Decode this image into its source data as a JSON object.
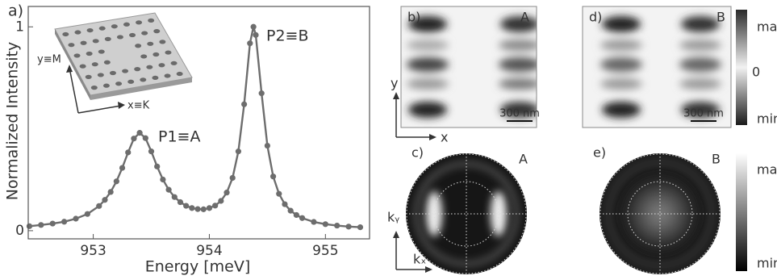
{
  "chart_data": {
    "type": "line",
    "panel_label": "a)",
    "x_label": "Energy [meV]",
    "y_label": "Normalized Intensity",
    "annotations": [
      "P1≡A",
      "P2≡B"
    ],
    "inset_labels": [
      "y≡M",
      "x≡K"
    ],
    "xlim": [
      952.44,
      955.38
    ],
    "ylim": [
      -0.04,
      1.1
    ],
    "xticks": [
      953,
      954,
      955
    ],
    "yticks": [
      0,
      1
    ],
    "x": [
      952.45,
      952.55,
      952.65,
      952.75,
      952.85,
      952.95,
      953.05,
      953.1,
      953.15,
      953.2,
      953.25,
      953.3,
      953.35,
      953.4,
      953.45,
      953.5,
      953.55,
      953.6,
      953.65,
      953.7,
      953.75,
      953.8,
      953.85,
      953.9,
      953.95,
      954.0,
      954.05,
      954.1,
      954.15,
      954.2,
      954.25,
      954.3,
      954.35,
      954.38,
      954.4,
      954.45,
      954.5,
      954.55,
      954.6,
      954.65,
      954.7,
      954.75,
      954.8,
      954.9,
      955.0,
      955.1,
      955.2,
      955.3
    ],
    "series": [
      {
        "color": "#6d6d6d",
        "values": [
          0.022,
          0.028,
          0.035,
          0.044,
          0.059,
          0.082,
          0.121,
          0.151,
          0.19,
          0.242,
          0.308,
          0.384,
          0.452,
          0.48,
          0.454,
          0.389,
          0.315,
          0.251,
          0.201,
          0.165,
          0.14,
          0.122,
          0.111,
          0.106,
          0.105,
          0.111,
          0.123,
          0.146,
          0.187,
          0.259,
          0.389,
          0.62,
          0.919,
          1.0,
          0.96,
          0.674,
          0.417,
          0.266,
          0.181,
          0.13,
          0.098,
          0.077,
          0.062,
          0.043,
          0.032,
          0.025,
          0.02,
          0.017
        ]
      }
    ]
  },
  "panels": {
    "b": {
      "label": "b)",
      "mode": "A",
      "scale_bar": "300 nm",
      "axis_y": "y",
      "axis_x": "x"
    },
    "d": {
      "label": "d)",
      "mode": "B",
      "scale_bar": "300 nm"
    },
    "c": {
      "label": "c)",
      "mode": "A",
      "axis_y": "kᵧ",
      "axis_x": "kₓ"
    },
    "e": {
      "label": "e)",
      "mode": "B"
    },
    "colorbar_top": [
      "max",
      "0",
      "min"
    ],
    "colorbar_bottom": [
      "max",
      "min"
    ]
  }
}
